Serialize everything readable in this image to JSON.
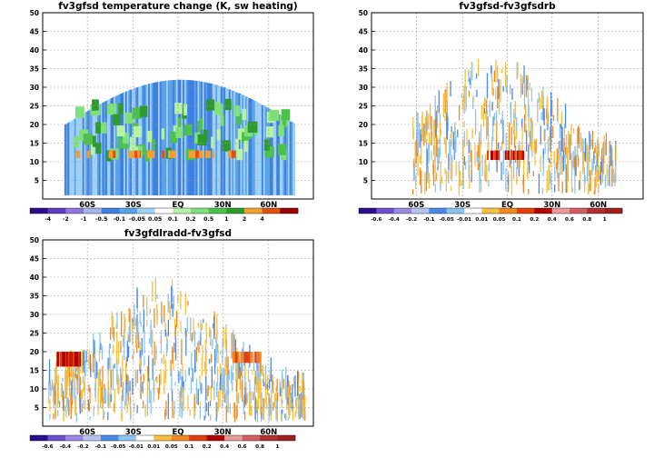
{
  "chart_data": [
    {
      "type": "heatmap",
      "title": "fv3gfsd temperature change (K, sw heating)",
      "xlabel": "",
      "ylabel": "",
      "ylim": [
        0,
        50
      ],
      "y_ticks": [
        "5",
        "10",
        "15",
        "20",
        "25",
        "30",
        "35",
        "40",
        "45",
        "50"
      ],
      "x_ticks": [
        "60S",
        "30S",
        "EQ",
        "30N",
        "60N"
      ],
      "grid": true,
      "colorbar": {
        "labels": [
          "-4",
          "-2",
          "-1",
          "-0.5",
          "-0.1",
          "-0.05",
          "0.05",
          "0.1",
          "0.2",
          "0.5",
          "1",
          "2",
          "4"
        ],
        "colors": [
          "#2a0f8a",
          "#5a3fc0",
          "#8e78dc",
          "#a9b4ec",
          "#3f7fe0",
          "#5aa3ea",
          "#9fd0f5",
          "#ffffff",
          "#b6f2a8",
          "#7ee07a",
          "#4cc24c",
          "#2e9a2e",
          "#f0a030",
          "#e05010",
          "#9a0000"
        ]
      },
      "series_description_note": ""
    },
    {
      "type": "heatmap",
      "title": "fv3gfsd-fv3gfsdrb",
      "xlabel": "",
      "ylabel": "",
      "ylim": [
        0,
        50
      ],
      "y_ticks": [
        "5",
        "10",
        "15",
        "20",
        "25",
        "30",
        "35",
        "40",
        "45",
        "50"
      ],
      "x_ticks": [
        "60S",
        "30S",
        "EQ",
        "30N",
        "60N"
      ],
      "grid": true,
      "colorbar": {
        "labels": [
          "-0.6",
          "-0.4",
          "-0.2",
          "-0.1",
          "-0.05",
          "-0.01",
          "0.01",
          "0.05",
          "0.1",
          "0.2",
          "0.4",
          "0.6",
          "0.8",
          "1"
        ],
        "colors": [
          "#2a0f8a",
          "#6a4fd0",
          "#9a88e4",
          "#b8c4f0",
          "#4a8ae6",
          "#8ec4f2",
          "#ffffff",
          "#f8c040",
          "#f08a20",
          "#e04010",
          "#b00000",
          "#e89a9a",
          "#d06060",
          "#b03030",
          "#a02020"
        ]
      }
    },
    {
      "type": "heatmap",
      "title": "fv3gfdlradd-fv3gfsd",
      "xlabel": "",
      "ylabel": "",
      "ylim": [
        0,
        50
      ],
      "y_ticks": [
        "5",
        "10",
        "15",
        "20",
        "25",
        "30",
        "35",
        "40",
        "45",
        "50"
      ],
      "x_ticks": [
        "60S",
        "30S",
        "EQ",
        "30N",
        "60N"
      ],
      "grid": true,
      "colorbar": {
        "labels": [
          "-0.6",
          "-0.4",
          "-0.2",
          "-0.1",
          "-0.05",
          "-0.01",
          "0.01",
          "0.05",
          "0.1",
          "0.2",
          "0.4",
          "0.6",
          "0.8",
          "1"
        ],
        "colors": [
          "#2a0f8a",
          "#6a4fd0",
          "#9a88e4",
          "#b8c4f0",
          "#4a8ae6",
          "#8ec4f2",
          "#ffffff",
          "#f8c040",
          "#f08a20",
          "#e04010",
          "#b00000",
          "#e89a9a",
          "#d06060",
          "#b03030",
          "#a02020"
        ]
      }
    }
  ]
}
